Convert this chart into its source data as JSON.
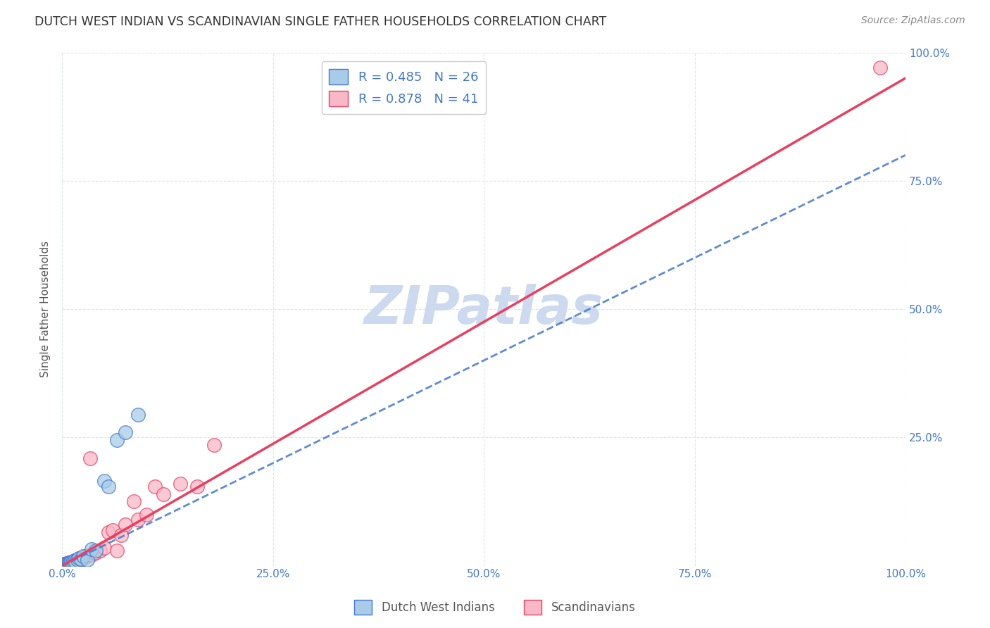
{
  "title": "DUTCH WEST INDIAN VS SCANDINAVIAN SINGLE FATHER HOUSEHOLDS CORRELATION CHART",
  "source": "Source: ZipAtlas.com",
  "ylabel": "Single Father Households",
  "watermark": "ZIPatlas",
  "legend1_R": "0.485",
  "legend1_N": "26",
  "legend2_R": "0.878",
  "legend2_N": "41",
  "color_blue": "#a8cce8",
  "color_pink": "#f8b8c8",
  "color_blue_line": "#4477cc",
  "color_pink_line": "#e84060",
  "color_title": "#333333",
  "color_source": "#888888",
  "color_watermark": "#ccd9ee",
  "color_axis_labels": "#4477cc",
  "color_grid": "#e0e4ea",
  "xlim": [
    0,
    1.0
  ],
  "ylim": [
    0,
    1.0
  ],
  "xtick_positions": [
    0,
    0.25,
    0.5,
    0.75,
    1.0
  ],
  "xtick_labels": [
    "0.0%",
    "25.0%",
    "50.0%",
    "75.0%",
    "100.0%"
  ],
  "ytick_positions": [
    0.25,
    0.5,
    0.75,
    1.0
  ],
  "ytick_labels": [
    "25.0%",
    "50.0%",
    "75.0%",
    "100.0%"
  ],
  "blue_line_x0": 0.0,
  "blue_line_y0": 0.0,
  "blue_line_x1": 1.0,
  "blue_line_y1": 0.8,
  "pink_line_x0": 0.0,
  "pink_line_y0": 0.0,
  "pink_line_x1": 1.0,
  "pink_line_y1": 0.95,
  "blue_x": [
    0.002,
    0.003,
    0.004,
    0.005,
    0.006,
    0.007,
    0.008,
    0.009,
    0.01,
    0.011,
    0.012,
    0.013,
    0.015,
    0.016,
    0.018,
    0.02,
    0.022,
    0.025,
    0.03,
    0.035,
    0.04,
    0.05,
    0.055,
    0.065,
    0.075,
    0.09
  ],
  "blue_y": [
    0.002,
    0.003,
    0.003,
    0.004,
    0.005,
    0.005,
    0.006,
    0.007,
    0.006,
    0.008,
    0.007,
    0.009,
    0.01,
    0.008,
    0.012,
    0.015,
    0.013,
    0.018,
    0.012,
    0.032,
    0.03,
    0.165,
    0.155,
    0.245,
    0.26,
    0.295
  ],
  "pink_x": [
    0.002,
    0.003,
    0.004,
    0.005,
    0.006,
    0.007,
    0.008,
    0.009,
    0.01,
    0.011,
    0.012,
    0.013,
    0.014,
    0.015,
    0.016,
    0.018,
    0.02,
    0.022,
    0.025,
    0.028,
    0.03,
    0.033,
    0.035,
    0.038,
    0.04,
    0.045,
    0.05,
    0.055,
    0.06,
    0.065,
    0.07,
    0.075,
    0.085,
    0.09,
    0.1,
    0.11,
    0.12,
    0.14,
    0.16,
    0.18,
    0.97
  ],
  "pink_y": [
    0.002,
    0.003,
    0.003,
    0.004,
    0.005,
    0.004,
    0.006,
    0.005,
    0.007,
    0.006,
    0.008,
    0.007,
    0.009,
    0.01,
    0.009,
    0.012,
    0.014,
    0.012,
    0.015,
    0.018,
    0.02,
    0.21,
    0.022,
    0.025,
    0.025,
    0.03,
    0.035,
    0.065,
    0.07,
    0.03,
    0.06,
    0.08,
    0.125,
    0.09,
    0.1,
    0.155,
    0.14,
    0.16,
    0.155,
    0.235,
    0.97
  ],
  "legend_label_blue": "Dutch West Indians",
  "legend_label_pink": "Scandinavians"
}
